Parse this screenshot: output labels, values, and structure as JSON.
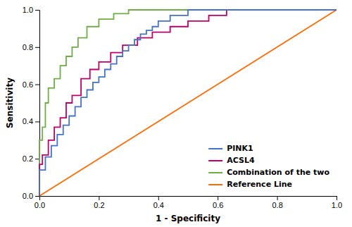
{
  "chart_data": {
    "type": "line",
    "xlabel": "1 - Specificity",
    "ylabel": "Sensitivity",
    "xlim": [
      0.0,
      1.0
    ],
    "ylim": [
      0.0,
      1.0
    ],
    "xticks": [
      {
        "value": 0.0,
        "label": "0.0"
      },
      0.2,
      0.4,
      0.6,
      0.8,
      {
        "value": 1.0,
        "label": "1.0"
      }
    ],
    "yticks": [
      {
        "value": 0.0,
        "label": "0.0"
      },
      0.2,
      0.4,
      0.6,
      0.8,
      {
        "value": 1.0,
        "label": "1.0"
      }
    ],
    "grid": false,
    "legend": "lower right",
    "series": [
      {
        "name": "PINK1",
        "color": "#4472C4",
        "x": [
          0.0,
          0.0,
          0.02,
          0.02,
          0.04,
          0.04,
          0.06,
          0.06,
          0.08,
          0.08,
          0.1,
          0.1,
          0.12,
          0.12,
          0.14,
          0.14,
          0.16,
          0.16,
          0.18,
          0.18,
          0.2,
          0.2,
          0.22,
          0.22,
          0.24,
          0.24,
          0.26,
          0.26,
          0.28,
          0.28,
          0.3,
          0.3,
          0.32,
          0.32,
          0.34,
          0.34,
          0.36,
          0.36,
          0.38,
          0.38,
          0.4,
          0.4,
          0.44,
          0.44,
          0.5,
          0.5,
          1.0
        ],
        "values": [
          0.0,
          0.14,
          0.14,
          0.21,
          0.21,
          0.27,
          0.27,
          0.33,
          0.33,
          0.38,
          0.38,
          0.43,
          0.43,
          0.48,
          0.48,
          0.53,
          0.53,
          0.57,
          0.57,
          0.61,
          0.61,
          0.64,
          0.64,
          0.68,
          0.68,
          0.71,
          0.71,
          0.75,
          0.75,
          0.78,
          0.78,
          0.81,
          0.81,
          0.84,
          0.84,
          0.87,
          0.87,
          0.89,
          0.89,
          0.91,
          0.91,
          0.94,
          0.94,
          0.97,
          0.97,
          1.0,
          1.0
        ]
      },
      {
        "name": "ACSL4",
        "color": "#C0006A",
        "x": [
          0.0,
          0.0,
          0.01,
          0.01,
          0.03,
          0.03,
          0.05,
          0.05,
          0.07,
          0.07,
          0.09,
          0.09,
          0.11,
          0.11,
          0.14,
          0.14,
          0.17,
          0.17,
          0.2,
          0.2,
          0.24,
          0.24,
          0.28,
          0.28,
          0.33,
          0.33,
          0.38,
          0.38,
          0.44,
          0.44,
          0.5,
          0.5,
          0.57,
          0.57,
          0.63,
          0.63,
          1.0
        ],
        "values": [
          0.0,
          0.17,
          0.17,
          0.22,
          0.22,
          0.3,
          0.3,
          0.37,
          0.37,
          0.42,
          0.42,
          0.5,
          0.5,
          0.54,
          0.54,
          0.63,
          0.63,
          0.68,
          0.68,
          0.72,
          0.72,
          0.77,
          0.77,
          0.81,
          0.81,
          0.85,
          0.85,
          0.88,
          0.88,
          0.91,
          0.91,
          0.94,
          0.94,
          0.97,
          0.97,
          1.0,
          1.0
        ]
      },
      {
        "name": "Combination of the two",
        "color": "#70AD47",
        "x": [
          0.0,
          0.0,
          0.01,
          0.01,
          0.02,
          0.02,
          0.03,
          0.03,
          0.05,
          0.05,
          0.07,
          0.07,
          0.09,
          0.09,
          0.11,
          0.11,
          0.13,
          0.13,
          0.16,
          0.16,
          0.2,
          0.2,
          0.25,
          0.25,
          0.3,
          0.3,
          1.0
        ],
        "values": [
          0.0,
          0.3,
          0.3,
          0.37,
          0.37,
          0.5,
          0.5,
          0.58,
          0.58,
          0.63,
          0.63,
          0.7,
          0.7,
          0.75,
          0.75,
          0.8,
          0.8,
          0.85,
          0.85,
          0.91,
          0.91,
          0.95,
          0.95,
          0.98,
          0.98,
          1.0,
          1.0
        ]
      },
      {
        "name": "Reference Line",
        "color": "#FF6A00",
        "x": [
          0.0,
          1.0
        ],
        "values": [
          0.0,
          1.0
        ]
      }
    ]
  }
}
